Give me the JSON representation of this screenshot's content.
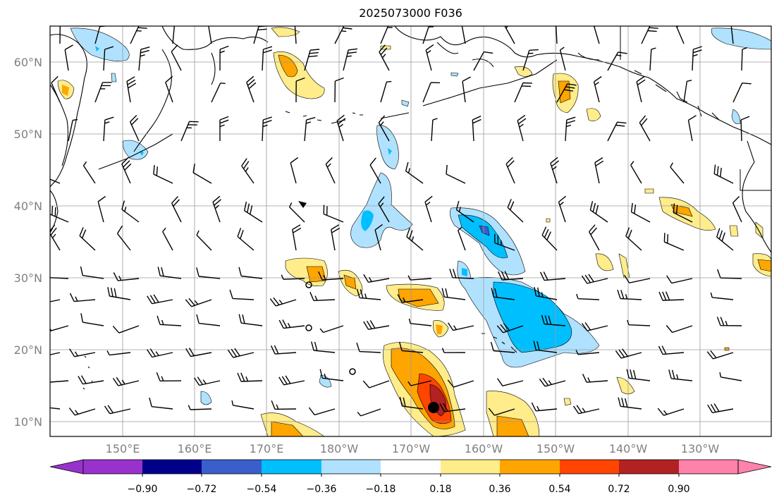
{
  "title": "2025073000 F036",
  "lat_labels": [
    "60°N",
    "50°N",
    "40°N",
    "30°N",
    "20°N",
    "10°N"
  ],
  "lon_labels": [
    "150°E",
    "160°E",
    "170°E",
    "180°W",
    "170°W",
    "160°W",
    "150°W",
    "140°W",
    "130°W"
  ],
  "colorbar": {
    "tick_labels": [
      "−0.90",
      "−0.72",
      "−0.54",
      "−0.36",
      "−0.18",
      "0.18",
      "0.36",
      "0.54",
      "0.72",
      "0.90"
    ],
    "colors": [
      "#9932cc",
      "#00008b",
      "#3a5fcd",
      "#00bfff",
      "#b0e2ff",
      "#ffffff",
      "#ffec8b",
      "#ffa500",
      "#ff4500",
      "#b22222",
      "#ff82ab"
    ]
  }
}
